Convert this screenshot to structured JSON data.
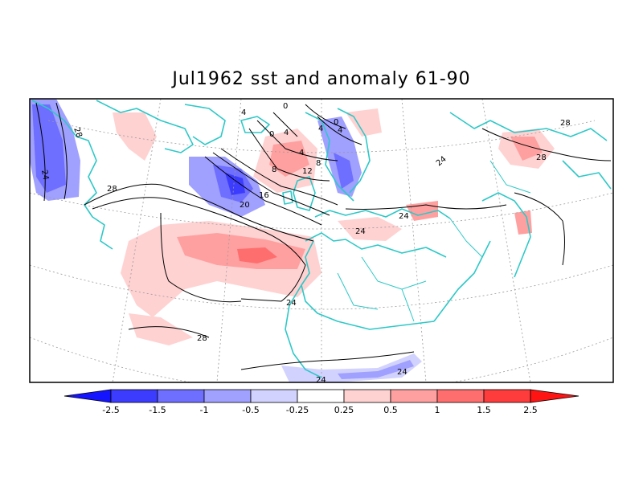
{
  "title": "Jul1962 sst and anomaly 61-90",
  "colorbar": {
    "labels": [
      "-2.5",
      "-1.5",
      "-1",
      "-0.5",
      "-0.25",
      "0.25",
      "0.5",
      "1",
      "1.5",
      "2.5"
    ],
    "colors": [
      "#1414ff",
      "#3c3cff",
      "#6e6eff",
      "#a0a0ff",
      "#d2d2ff",
      "#ffffff",
      "#ffd2d2",
      "#ffa0a0",
      "#ff6e6e",
      "#ff3c3c",
      "#ff1414"
    ]
  },
  "contour_labels": [
    "0",
    "4",
    "4",
    "0",
    "4",
    "0",
    "4",
    "8",
    "8",
    "12",
    "16",
    "20",
    "24",
    "24",
    "24",
    "24",
    "24",
    "24",
    "28",
    "28",
    "28",
    "28",
    "28",
    "24",
    "4"
  ],
  "colors": {
    "coast": "#2ec8c8",
    "positive": "#ff6e6e",
    "negative": "#6e6eff",
    "contour": "#000000"
  }
}
